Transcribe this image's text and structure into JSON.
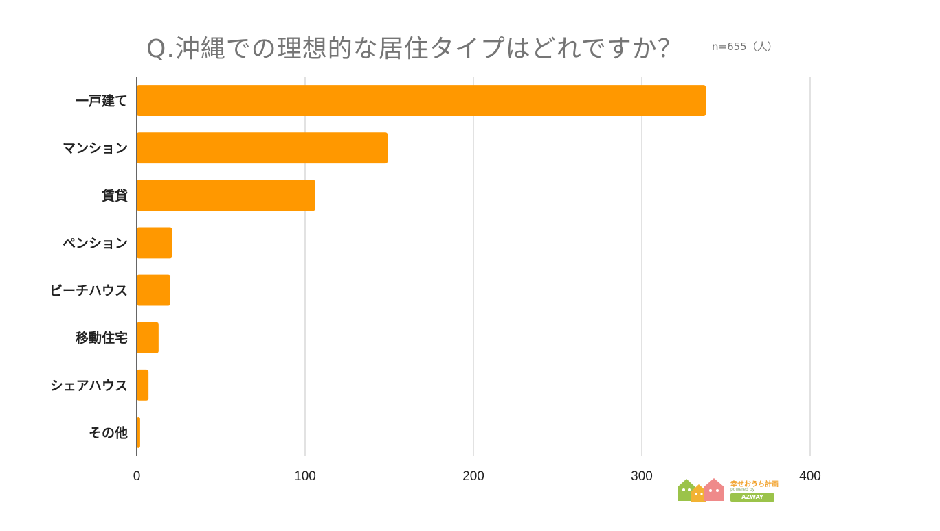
{
  "chart_data": {
    "type": "bar",
    "orientation": "horizontal",
    "title": "Q.沖縄での理想的な居住タイプはどれですか？",
    "note": "n=655（人）",
    "categories": [
      "一戸建て",
      "マンション",
      "賃貸",
      "ペンション",
      "ビーチハウス",
      "移動住宅",
      "シェアハウス",
      "その他"
    ],
    "values": [
      338,
      149,
      106,
      21,
      20,
      13,
      7,
      2
    ],
    "xlim": [
      0,
      400
    ],
    "xticks": [
      0,
      100,
      200,
      300,
      400
    ],
    "xlabel": "",
    "ylabel": "",
    "grid": "vertical",
    "bar_color": "#ff9800",
    "grid_color": "#d9d9d9",
    "axis_color": "#333333"
  },
  "logo": {
    "text": "幸せおうち計画",
    "sub": "powered by",
    "brand": "AZWAY",
    "colors": [
      "#9bc34a",
      "#f2b233",
      "#ef8a8a"
    ]
  }
}
